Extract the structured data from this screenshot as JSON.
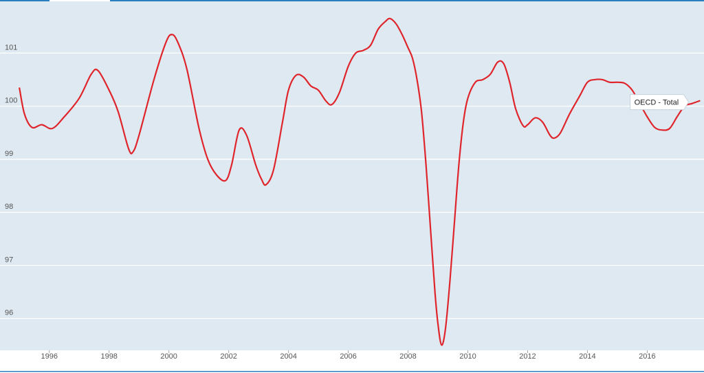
{
  "chart_data": {
    "type": "line",
    "title": "",
    "xlabel": "",
    "ylabel": "",
    "xlim": [
      1994.35,
      2017.9
    ],
    "ylim": [
      95.4,
      102.0
    ],
    "grid": true,
    "y_ticks": [
      96,
      97,
      98,
      99,
      100,
      101
    ],
    "y_tick_labels": [
      "96",
      "97",
      "98",
      "99",
      "100",
      "101"
    ],
    "x_ticks": [
      1996,
      1998,
      2000,
      2002,
      2004,
      2006,
      2008,
      2010,
      2012,
      2014,
      2016
    ],
    "x_tick_labels": [
      "1996",
      "1998",
      "2000",
      "2002",
      "2004",
      "2006",
      "2008",
      "2010",
      "2012",
      "2014",
      "2016"
    ],
    "series": [
      {
        "name": "OECD - Total",
        "color": "#e0242b",
        "points": [
          [
            1995.0,
            100.34
          ],
          [
            1995.17,
            99.85
          ],
          [
            1995.42,
            99.6
          ],
          [
            1995.75,
            99.65
          ],
          [
            1996.1,
            99.58
          ],
          [
            1996.5,
            99.8
          ],
          [
            1997.0,
            100.15
          ],
          [
            1997.4,
            100.6
          ],
          [
            1997.63,
            100.67
          ],
          [
            1998.0,
            100.3
          ],
          [
            1998.3,
            99.9
          ],
          [
            1998.65,
            99.2
          ],
          [
            1998.8,
            99.14
          ],
          [
            1999.0,
            99.45
          ],
          [
            1999.5,
            100.5
          ],
          [
            1999.9,
            101.2
          ],
          [
            2000.1,
            101.35
          ],
          [
            2000.3,
            101.2
          ],
          [
            2000.6,
            100.7
          ],
          [
            2001.0,
            99.6
          ],
          [
            2001.3,
            99.0
          ],
          [
            2001.6,
            98.7
          ],
          [
            2001.9,
            98.6
          ],
          [
            2002.1,
            98.9
          ],
          [
            2002.35,
            99.55
          ],
          [
            2002.6,
            99.45
          ],
          [
            2002.9,
            98.9
          ],
          [
            2003.1,
            98.62
          ],
          [
            2003.25,
            98.52
          ],
          [
            2003.5,
            98.8
          ],
          [
            2003.8,
            99.7
          ],
          [
            2004.0,
            100.3
          ],
          [
            2004.25,
            100.58
          ],
          [
            2004.5,
            100.55
          ],
          [
            2004.75,
            100.38
          ],
          [
            2005.0,
            100.3
          ],
          [
            2005.25,
            100.1
          ],
          [
            2005.45,
            100.03
          ],
          [
            2005.7,
            100.25
          ],
          [
            2006.0,
            100.75
          ],
          [
            2006.25,
            101.0
          ],
          [
            2006.5,
            101.05
          ],
          [
            2006.75,
            101.15
          ],
          [
            2007.0,
            101.45
          ],
          [
            2007.25,
            101.6
          ],
          [
            2007.4,
            101.65
          ],
          [
            2007.6,
            101.55
          ],
          [
            2007.8,
            101.35
          ],
          [
            2008.0,
            101.1
          ],
          [
            2008.15,
            100.9
          ],
          [
            2008.3,
            100.5
          ],
          [
            2008.45,
            99.9
          ],
          [
            2008.6,
            98.9
          ],
          [
            2008.75,
            97.7
          ],
          [
            2008.9,
            96.5
          ],
          [
            2009.0,
            95.9
          ],
          [
            2009.12,
            95.5
          ],
          [
            2009.25,
            95.8
          ],
          [
            2009.4,
            96.7
          ],
          [
            2009.55,
            97.8
          ],
          [
            2009.7,
            98.9
          ],
          [
            2009.85,
            99.7
          ],
          [
            2010.0,
            100.15
          ],
          [
            2010.25,
            100.45
          ],
          [
            2010.5,
            100.5
          ],
          [
            2010.75,
            100.6
          ],
          [
            2011.0,
            100.83
          ],
          [
            2011.2,
            100.8
          ],
          [
            2011.4,
            100.45
          ],
          [
            2011.6,
            99.95
          ],
          [
            2011.85,
            99.63
          ],
          [
            2012.0,
            99.65
          ],
          [
            2012.25,
            99.78
          ],
          [
            2012.5,
            99.7
          ],
          [
            2012.75,
            99.45
          ],
          [
            2012.9,
            99.4
          ],
          [
            2013.1,
            99.5
          ],
          [
            2013.4,
            99.85
          ],
          [
            2013.75,
            100.2
          ],
          [
            2014.0,
            100.45
          ],
          [
            2014.25,
            100.5
          ],
          [
            2014.5,
            100.5
          ],
          [
            2014.75,
            100.45
          ],
          [
            2015.0,
            100.45
          ],
          [
            2015.25,
            100.43
          ],
          [
            2015.5,
            100.3
          ],
          [
            2015.75,
            100.05
          ],
          [
            2016.0,
            99.8
          ],
          [
            2016.25,
            99.6
          ],
          [
            2016.5,
            99.55
          ],
          [
            2016.75,
            99.58
          ],
          [
            2017.0,
            99.8
          ],
          [
            2017.25,
            100.0
          ],
          [
            2017.5,
            100.05
          ],
          [
            2017.75,
            100.1
          ]
        ]
      }
    ],
    "annotations": [
      {
        "text": "OECD - Total",
        "x": 2017.5,
        "y": 100.05
      }
    ]
  }
}
